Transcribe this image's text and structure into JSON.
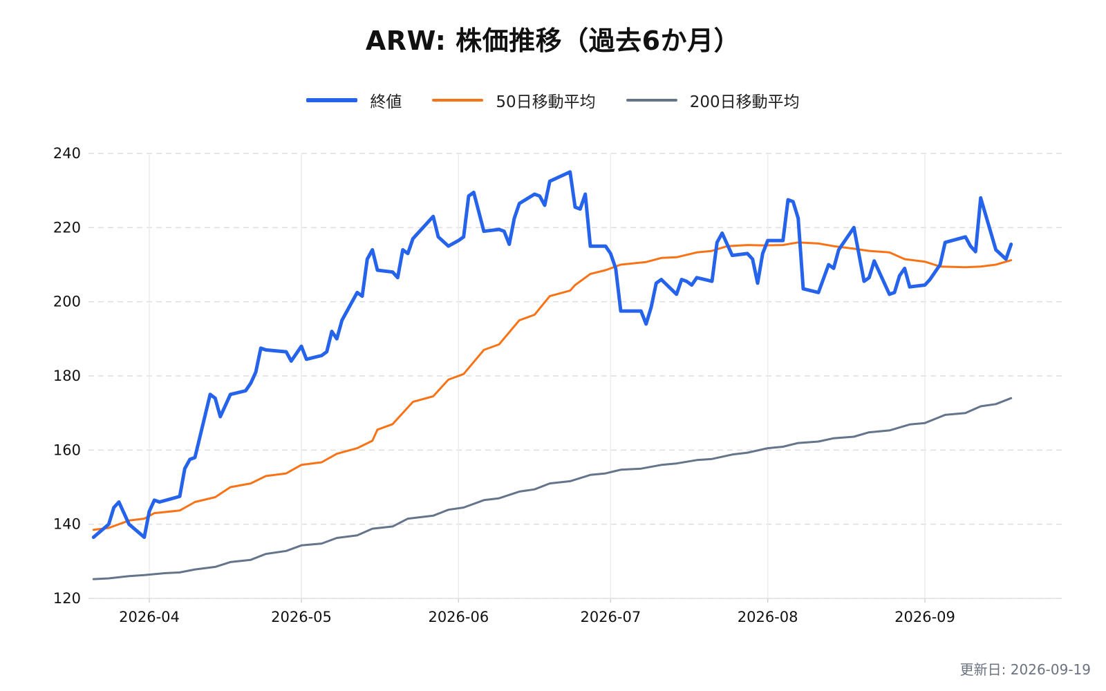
{
  "title": "ARW: 株価推移（過去6か月）",
  "footer": "更新日: 2026-09-19",
  "legend": [
    {
      "label": "終値",
      "color": "#2563eb"
    },
    {
      "label": "50日移動平均",
      "color": "#f97316"
    },
    {
      "label": "200日移動平均",
      "color": "#64748b"
    }
  ],
  "chart_data": {
    "type": "line",
    "title": "ARW: 株価推移（過去6か月）",
    "xlabel": "",
    "ylabel": "",
    "xlim": [
      "2026-03-20",
      "2026-09-28"
    ],
    "ylim": [
      120,
      240
    ],
    "x_ticks": [
      "2026-04-01",
      "2026-05-01",
      "2026-06-01",
      "2026-07-01",
      "2026-08-01",
      "2026-09-01"
    ],
    "x_tick_labels": [
      "2026-04",
      "2026-05",
      "2026-06",
      "2026-07",
      "2026-08",
      "2026-09"
    ],
    "y_ticks": [
      120,
      140,
      160,
      180,
      200,
      220,
      240
    ],
    "grid": {
      "y": "dashed",
      "x": "solid-light"
    },
    "legend_position": "top-center",
    "series": [
      {
        "name": "終値",
        "color": "#2563eb",
        "points": [
          [
            "2026-03-21",
            136.5
          ],
          [
            "2026-03-24",
            140.0
          ],
          [
            "2026-03-25",
            144.5
          ],
          [
            "2026-03-26",
            146.0
          ],
          [
            "2026-03-28",
            140.0
          ],
          [
            "2026-03-31",
            136.5
          ],
          [
            "2026-04-01",
            143.5
          ],
          [
            "2026-04-02",
            146.5
          ],
          [
            "2026-04-03",
            146.0
          ],
          [
            "2026-04-07",
            147.5
          ],
          [
            "2026-04-08",
            155.0
          ],
          [
            "2026-04-09",
            157.5
          ],
          [
            "2026-04-10",
            158.0
          ],
          [
            "2026-04-13",
            175.0
          ],
          [
            "2026-04-14",
            174.0
          ],
          [
            "2026-04-15",
            169.0
          ],
          [
            "2026-04-17",
            175.0
          ],
          [
            "2026-04-20",
            176.0
          ],
          [
            "2026-04-21",
            178.0
          ],
          [
            "2026-04-22",
            181.0
          ],
          [
            "2026-04-23",
            187.5
          ],
          [
            "2026-04-24",
            187.0
          ],
          [
            "2026-04-28",
            186.5
          ],
          [
            "2026-04-29",
            184.0
          ],
          [
            "2026-05-01",
            188.0
          ],
          [
            "2026-05-02",
            184.5
          ],
          [
            "2026-05-05",
            185.5
          ],
          [
            "2026-05-06",
            186.5
          ],
          [
            "2026-05-07",
            192.0
          ],
          [
            "2026-05-08",
            190.0
          ],
          [
            "2026-05-09",
            195.0
          ],
          [
            "2026-05-12",
            202.5
          ],
          [
            "2026-05-13",
            201.5
          ],
          [
            "2026-05-14",
            211.5
          ],
          [
            "2026-05-15",
            214.0
          ],
          [
            "2026-05-16",
            208.5
          ],
          [
            "2026-05-19",
            208.0
          ],
          [
            "2026-05-20",
            206.5
          ],
          [
            "2026-05-21",
            214.0
          ],
          [
            "2026-05-22",
            213.0
          ],
          [
            "2026-05-23",
            217.0
          ],
          [
            "2026-05-27",
            223.0
          ],
          [
            "2026-05-28",
            217.5
          ],
          [
            "2026-05-30",
            215.0
          ],
          [
            "2026-06-01",
            216.5
          ],
          [
            "2026-06-02",
            217.5
          ],
          [
            "2026-06-03",
            228.5
          ],
          [
            "2026-06-04",
            229.5
          ],
          [
            "2026-06-06",
            219.0
          ],
          [
            "2026-06-09",
            219.5
          ],
          [
            "2026-06-10",
            219.0
          ],
          [
            "2026-06-11",
            215.5
          ],
          [
            "2026-06-12",
            222.5
          ],
          [
            "2026-06-13",
            226.5
          ],
          [
            "2026-06-16",
            229.0
          ],
          [
            "2026-06-17",
            228.5
          ],
          [
            "2026-06-18",
            226.0
          ],
          [
            "2026-06-19",
            232.5
          ],
          [
            "2026-06-23",
            235.0
          ],
          [
            "2026-06-24",
            225.5
          ],
          [
            "2026-06-25",
            225.0
          ],
          [
            "2026-06-26",
            229.0
          ],
          [
            "2026-06-27",
            215.0
          ],
          [
            "2026-06-30",
            215.0
          ],
          [
            "2026-07-01",
            213.0
          ],
          [
            "2026-07-02",
            209.0
          ],
          [
            "2026-07-03",
            197.5
          ],
          [
            "2026-07-07",
            197.5
          ],
          [
            "2026-07-08",
            194.0
          ],
          [
            "2026-07-09",
            198.5
          ],
          [
            "2026-07-10",
            205.0
          ],
          [
            "2026-07-11",
            206.0
          ],
          [
            "2026-07-14",
            202.0
          ],
          [
            "2026-07-15",
            206.0
          ],
          [
            "2026-07-16",
            205.5
          ],
          [
            "2026-07-17",
            204.5
          ],
          [
            "2026-07-18",
            206.5
          ],
          [
            "2026-07-21",
            205.5
          ],
          [
            "2026-07-22",
            216.0
          ],
          [
            "2026-07-23",
            218.5
          ],
          [
            "2026-07-25",
            212.5
          ],
          [
            "2026-07-28",
            213.0
          ],
          [
            "2026-07-29",
            211.5
          ],
          [
            "2026-07-30",
            205.0
          ],
          [
            "2026-07-31",
            213.0
          ],
          [
            "2026-08-01",
            216.5
          ],
          [
            "2026-08-04",
            216.5
          ],
          [
            "2026-08-05",
            227.5
          ],
          [
            "2026-08-06",
            227.0
          ],
          [
            "2026-08-07",
            222.5
          ],
          [
            "2026-08-08",
            203.5
          ],
          [
            "2026-08-11",
            202.5
          ],
          [
            "2026-08-13",
            210.0
          ],
          [
            "2026-08-14",
            209.0
          ],
          [
            "2026-08-15",
            214.0
          ],
          [
            "2026-08-18",
            220.0
          ],
          [
            "2026-08-20",
            205.5
          ],
          [
            "2026-08-21",
            206.5
          ],
          [
            "2026-08-22",
            211.0
          ],
          [
            "2026-08-25",
            202.0
          ],
          [
            "2026-08-26",
            202.5
          ],
          [
            "2026-08-27",
            207.0
          ],
          [
            "2026-08-28",
            209.0
          ],
          [
            "2026-08-29",
            204.0
          ],
          [
            "2026-09-01",
            204.5
          ],
          [
            "2026-09-02",
            206.0
          ],
          [
            "2026-09-03",
            208.0
          ],
          [
            "2026-09-04",
            210.0
          ],
          [
            "2026-09-05",
            216.0
          ],
          [
            "2026-09-09",
            217.5
          ],
          [
            "2026-09-10",
            215.0
          ],
          [
            "2026-09-11",
            213.5
          ],
          [
            "2026-09-12",
            228.0
          ],
          [
            "2026-09-15",
            214.0
          ],
          [
            "2026-09-17",
            211.5
          ],
          [
            "2026-09-18",
            215.5
          ]
        ]
      },
      {
        "name": "50日移動平均",
        "color": "#f97316",
        "points": [
          [
            "2026-03-21",
            138.5
          ],
          [
            "2026-03-24",
            139.0
          ],
          [
            "2026-03-28",
            141.0
          ],
          [
            "2026-03-31",
            141.5
          ],
          [
            "2026-04-02",
            143.0
          ],
          [
            "2026-04-07",
            143.7
          ],
          [
            "2026-04-10",
            146.0
          ],
          [
            "2026-04-14",
            147.3
          ],
          [
            "2026-04-17",
            150.0
          ],
          [
            "2026-04-21",
            151.0
          ],
          [
            "2026-04-24",
            153.0
          ],
          [
            "2026-04-28",
            153.7
          ],
          [
            "2026-05-01",
            156.0
          ],
          [
            "2026-05-05",
            156.7
          ],
          [
            "2026-05-08",
            159.0
          ],
          [
            "2026-05-12",
            160.5
          ],
          [
            "2026-05-15",
            162.5
          ],
          [
            "2026-05-16",
            165.5
          ],
          [
            "2026-05-19",
            167.0
          ],
          [
            "2026-05-23",
            173.0
          ],
          [
            "2026-05-27",
            174.5
          ],
          [
            "2026-05-30",
            179.0
          ],
          [
            "2026-06-02",
            180.5
          ],
          [
            "2026-06-06",
            187.0
          ],
          [
            "2026-06-09",
            188.5
          ],
          [
            "2026-06-13",
            195.0
          ],
          [
            "2026-06-16",
            196.5
          ],
          [
            "2026-06-19",
            201.5
          ],
          [
            "2026-06-23",
            203.0
          ],
          [
            "2026-06-24",
            204.5
          ],
          [
            "2026-06-27",
            207.5
          ],
          [
            "2026-06-30",
            208.5
          ],
          [
            "2026-07-03",
            210.0
          ],
          [
            "2026-07-08",
            210.7
          ],
          [
            "2026-07-11",
            211.8
          ],
          [
            "2026-07-14",
            212.0
          ],
          [
            "2026-07-18",
            213.3
          ],
          [
            "2026-07-21",
            213.7
          ],
          [
            "2026-07-24",
            215.0
          ],
          [
            "2026-07-28",
            215.3
          ],
          [
            "2026-07-31",
            215.2
          ],
          [
            "2026-08-04",
            215.3
          ],
          [
            "2026-08-07",
            216.0
          ],
          [
            "2026-08-11",
            215.7
          ],
          [
            "2026-08-14",
            215.0
          ],
          [
            "2026-08-18",
            214.3
          ],
          [
            "2026-08-21",
            213.7
          ],
          [
            "2026-08-25",
            213.3
          ],
          [
            "2026-08-28",
            211.5
          ],
          [
            "2026-09-01",
            210.8
          ],
          [
            "2026-09-04",
            209.5
          ],
          [
            "2026-09-09",
            209.3
          ],
          [
            "2026-09-12",
            209.5
          ],
          [
            "2026-09-15",
            210.0
          ],
          [
            "2026-09-18",
            211.2
          ]
        ]
      },
      {
        "name": "200日移動平均",
        "color": "#64748b",
        "points": [
          [
            "2026-03-21",
            125.2
          ],
          [
            "2026-03-24",
            125.4
          ],
          [
            "2026-03-28",
            126.0
          ],
          [
            "2026-03-31",
            126.3
          ],
          [
            "2026-04-04",
            126.8
          ],
          [
            "2026-04-07",
            127.0
          ],
          [
            "2026-04-10",
            127.8
          ],
          [
            "2026-04-14",
            128.5
          ],
          [
            "2026-04-17",
            129.8
          ],
          [
            "2026-04-21",
            130.4
          ],
          [
            "2026-04-24",
            132.0
          ],
          [
            "2026-04-28",
            132.8
          ],
          [
            "2026-05-01",
            134.3
          ],
          [
            "2026-05-05",
            134.8
          ],
          [
            "2026-05-08",
            136.3
          ],
          [
            "2026-05-12",
            137.0
          ],
          [
            "2026-05-15",
            138.8
          ],
          [
            "2026-05-19",
            139.4
          ],
          [
            "2026-05-22",
            141.5
          ],
          [
            "2026-05-27",
            142.3
          ],
          [
            "2026-05-30",
            143.9
          ],
          [
            "2026-06-02",
            144.5
          ],
          [
            "2026-06-06",
            146.5
          ],
          [
            "2026-06-09",
            147.0
          ],
          [
            "2026-06-13",
            148.8
          ],
          [
            "2026-06-16",
            149.4
          ],
          [
            "2026-06-19",
            151.0
          ],
          [
            "2026-06-23",
            151.6
          ],
          [
            "2026-06-27",
            153.3
          ],
          [
            "2026-06-30",
            153.7
          ],
          [
            "2026-07-03",
            154.7
          ],
          [
            "2026-07-07",
            155.0
          ],
          [
            "2026-07-11",
            156.0
          ],
          [
            "2026-07-14",
            156.4
          ],
          [
            "2026-07-18",
            157.3
          ],
          [
            "2026-07-21",
            157.6
          ],
          [
            "2026-07-25",
            158.8
          ],
          [
            "2026-07-28",
            159.3
          ],
          [
            "2026-08-01",
            160.5
          ],
          [
            "2026-08-04",
            160.9
          ],
          [
            "2026-08-07",
            161.9
          ],
          [
            "2026-08-11",
            162.3
          ],
          [
            "2026-08-14",
            163.2
          ],
          [
            "2026-08-18",
            163.6
          ],
          [
            "2026-08-21",
            164.8
          ],
          [
            "2026-08-25",
            165.3
          ],
          [
            "2026-08-29",
            166.9
          ],
          [
            "2026-09-01",
            167.3
          ],
          [
            "2026-09-05",
            169.5
          ],
          [
            "2026-09-09",
            170.0
          ],
          [
            "2026-09-12",
            171.8
          ],
          [
            "2026-09-15",
            172.4
          ],
          [
            "2026-09-18",
            174.0
          ]
        ]
      }
    ]
  }
}
